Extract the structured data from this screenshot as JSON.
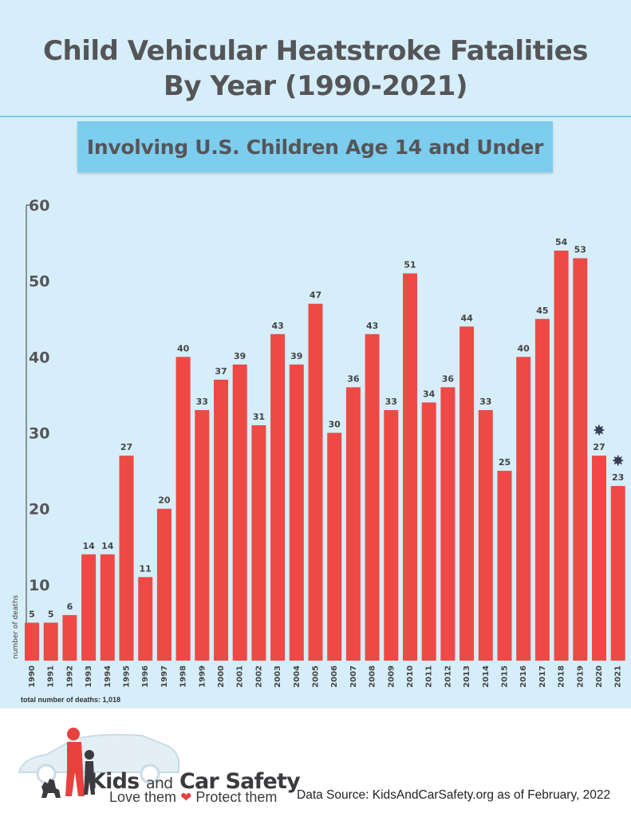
{
  "title": {
    "line1": "Child Vehicular Heatstroke Fatalities",
    "line2": "By Year (1990-2021)"
  },
  "subtitle": "Involving U.S. Children Age 14 and Under",
  "colors": {
    "bar": "#ef4945",
    "background": "#d6eef9",
    "banner": "#7ccdee",
    "title": "#555558"
  },
  "chart_data": {
    "type": "bar",
    "title": "Child Vehicular Heatstroke Fatalities By Year (1990-2021)",
    "subtitle": "Involving U.S. Children Age 14 and Under",
    "xlabel": "",
    "ylabel": "number of deaths",
    "ylim": [
      0,
      60
    ],
    "yticks": [
      10,
      20,
      30,
      40,
      50,
      60
    ],
    "grid": false,
    "categories": [
      "1990",
      "1991",
      "1992",
      "1993",
      "1994",
      "1995",
      "1996",
      "1997",
      "1998",
      "1999",
      "2000",
      "2001",
      "2002",
      "2003",
      "2004",
      "2005",
      "2006",
      "2007",
      "2008",
      "2009",
      "2010",
      "2011",
      "2012",
      "2013",
      "2014",
      "2015",
      "2016",
      "2017",
      "2018",
      "2019",
      "2020",
      "2021"
    ],
    "values": [
      5,
      5,
      6,
      14,
      14,
      27,
      11,
      20,
      40,
      33,
      37,
      39,
      31,
      43,
      39,
      47,
      30,
      36,
      43,
      33,
      51,
      34,
      36,
      44,
      33,
      25,
      40,
      45,
      54,
      53,
      27,
      23
    ],
    "annotations": [
      {
        "category": "2020",
        "icon": "virus-icon"
      },
      {
        "category": "2021",
        "icon": "virus-icon"
      }
    ]
  },
  "total_note": "total number of deaths: 1,018",
  "logo": {
    "name_part1": "Kids",
    "name_part2": "and",
    "name_part3": "Car Safety",
    "tagline_part1": "Love them",
    "tagline_part2": "Protect them",
    "heart_icon": "heart-icon"
  },
  "source": "Data Source: KidsAndCarSafety.org as of February, 2022"
}
